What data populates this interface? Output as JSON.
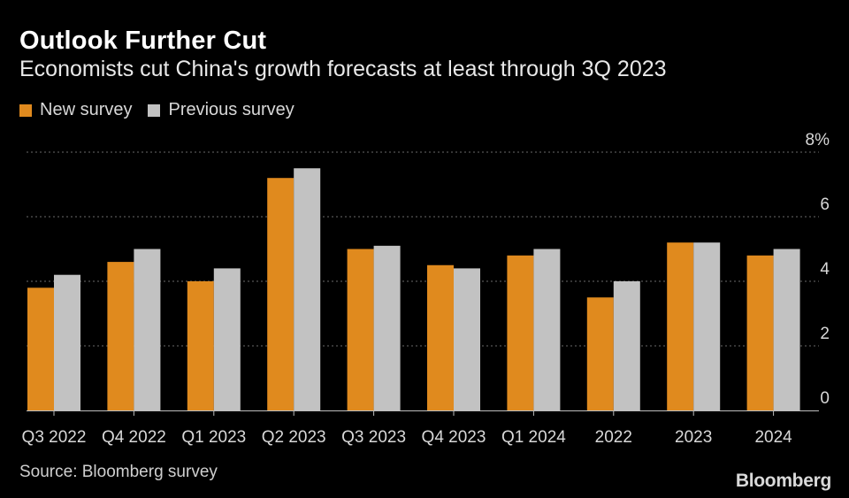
{
  "chart_data": {
    "type": "bar",
    "title": "Outlook Further Cut",
    "subtitle": "Economists cut China's growth forecasts at least through 3Q 2023",
    "categories": [
      "Q3 2022",
      "Q4 2022",
      "Q1 2023",
      "Q2 2023",
      "Q3 2023",
      "Q4 2023",
      "Q1 2024",
      "2022",
      "2023",
      "2024"
    ],
    "series": [
      {
        "name": "New survey",
        "color": "#e08a1e",
        "values": [
          3.8,
          4.6,
          4.0,
          7.2,
          5.0,
          4.5,
          4.8,
          3.5,
          5.2,
          4.8
        ]
      },
      {
        "name": "Previous survey",
        "color": "#c2c2c2",
        "values": [
          4.2,
          5.0,
          4.4,
          7.5,
          5.1,
          4.4,
          5.0,
          4.0,
          5.2,
          5.0
        ]
      }
    ],
    "ylim": [
      0,
      8
    ],
    "yticks": [
      "0",
      "2",
      "4",
      "6",
      "8%"
    ],
    "ytick_values": [
      0,
      2,
      4,
      6,
      8
    ],
    "xlabel": "",
    "ylabel": "",
    "grid": true,
    "legend_position": "top-left",
    "source": "Source: Bloomberg survey",
    "brand": "Bloomberg"
  }
}
